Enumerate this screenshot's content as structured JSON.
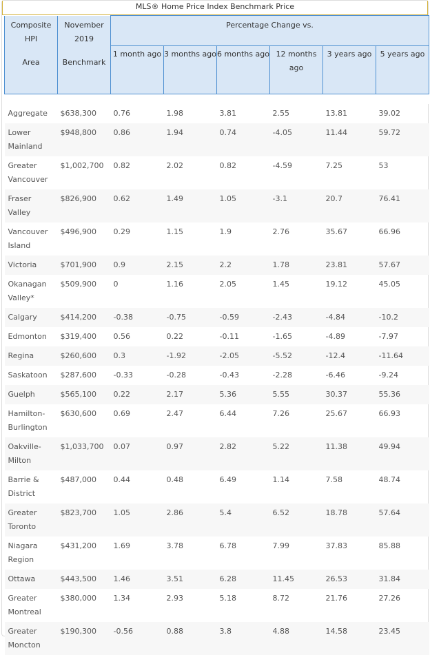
{
  "caption": "MLS® Home Price Index Benchmark Price",
  "header": {
    "composite_hpi": "Composite HPI",
    "area": "Area",
    "november_2019": "November 2019",
    "benchmark": "Benchmark",
    "percentage_change": "Percentage Change vs.",
    "periods": [
      "1 month ago",
      "3 months ago",
      "6 months ago",
      "12 months ago",
      "3 years ago",
      "5 years ago"
    ]
  },
  "rows": [
    {
      "area": "Aggregate",
      "benchmark": "$638,300",
      "m1": "0.76",
      "m3": "1.98",
      "m6": "3.81",
      "m12": "2.55",
      "y3": "13.81",
      "y5": "39.02"
    },
    {
      "area": "Lower Mainland",
      "benchmark": "$948,800",
      "m1": "0.86",
      "m3": "1.94",
      "m6": "0.74",
      "m12": "-4.05",
      "y3": "11.44",
      "y5": "59.72"
    },
    {
      "area": "Greater Vancouver",
      "benchmark": "$1,002,700",
      "m1": "0.82",
      "m3": "2.02",
      "m6": "0.82",
      "m12": "-4.59",
      "y3": "7.25",
      "y5": "53"
    },
    {
      "area": "Fraser Valley",
      "benchmark": "$826,900",
      "m1": "0.62",
      "m3": "1.49",
      "m6": "1.05",
      "m12": "-3.1",
      "y3": "20.7",
      "y5": "76.41"
    },
    {
      "area": "Vancouver Island",
      "benchmark": "$496,900",
      "m1": "0.29",
      "m3": "1.15",
      "m6": "1.9",
      "m12": "2.76",
      "y3": "35.67",
      "y5": "66.96"
    },
    {
      "area": "Victoria",
      "benchmark": "$701,900",
      "m1": "0.9",
      "m3": "2.15",
      "m6": "2.2",
      "m12": "1.78",
      "y3": "23.81",
      "y5": "57.67"
    },
    {
      "area": "Okanagan Valley*",
      "benchmark": "$509,900",
      "m1": "0",
      "m3": "1.16",
      "m6": "2.05",
      "m12": "1.45",
      "y3": "19.12",
      "y5": "45.05"
    },
    {
      "area": "Calgary",
      "benchmark": "$414,200",
      "m1": "-0.38",
      "m3": "-0.75",
      "m6": "-0.59",
      "m12": "-2.43",
      "y3": "-4.84",
      "y5": "-10.2"
    },
    {
      "area": "Edmonton",
      "benchmark": "$319,400",
      "m1": "0.56",
      "m3": "0.22",
      "m6": "-0.11",
      "m12": "-1.65",
      "y3": "-4.89",
      "y5": "-7.97"
    },
    {
      "area": "Regina",
      "benchmark": "$260,600",
      "m1": "0.3",
      "m3": "-1.92",
      "m6": "-2.05",
      "m12": "-5.52",
      "y3": "-12.4",
      "y5": "-11.64"
    },
    {
      "area": "Saskatoon",
      "benchmark": "$287,600",
      "m1": "-0.33",
      "m3": "-0.28",
      "m6": "-0.43",
      "m12": "-2.28",
      "y3": "-6.46",
      "y5": "-9.24"
    },
    {
      "area": "Guelph",
      "benchmark": "$565,100",
      "m1": "0.22",
      "m3": "2.17",
      "m6": "5.36",
      "m12": "5.55",
      "y3": "30.37",
      "y5": "55.36"
    },
    {
      "area": "Hamilton-Burlington",
      "benchmark": "$630,600",
      "m1": "0.69",
      "m3": "2.47",
      "m6": "6.44",
      "m12": "7.26",
      "y3": "25.67",
      "y5": "66.93"
    },
    {
      "area": "Oakville-Milton",
      "benchmark": "$1,033,700",
      "m1": "0.07",
      "m3": "0.97",
      "m6": "2.82",
      "m12": "5.22",
      "y3": "11.38",
      "y5": "49.94"
    },
    {
      "area": "Barrie & District",
      "benchmark": "$487,000",
      "m1": "0.44",
      "m3": "0.48",
      "m6": "6.49",
      "m12": "1.14",
      "y3": "7.58",
      "y5": "48.74"
    },
    {
      "area": "Greater Toronto",
      "benchmark": "$823,700",
      "m1": "1.05",
      "m3": "2.86",
      "m6": "5.4",
      "m12": "6.52",
      "y3": "18.78",
      "y5": "57.64"
    },
    {
      "area": "Niagara Region",
      "benchmark": "$431,200",
      "m1": "1.69",
      "m3": "3.78",
      "m6": "6.78",
      "m12": "7.99",
      "y3": "37.83",
      "y5": "85.88"
    },
    {
      "area": "Ottawa",
      "benchmark": "$443,500",
      "m1": "1.46",
      "m3": "3.51",
      "m6": "6.28",
      "m12": "11.45",
      "y3": "26.53",
      "y5": "31.84"
    },
    {
      "area": "Greater Montreal",
      "benchmark": "$380,000",
      "m1": "1.34",
      "m3": "2.93",
      "m6": "5.18",
      "m12": "8.72",
      "y3": "21.76",
      "y5": "27.26"
    },
    {
      "area": "Greater Moncton",
      "benchmark": "$190,300",
      "m1": "-0.56",
      "m3": "0.88",
      "m6": "3.8",
      "m12": "4.88",
      "y3": "14.58",
      "y5": "23.45"
    }
  ]
}
